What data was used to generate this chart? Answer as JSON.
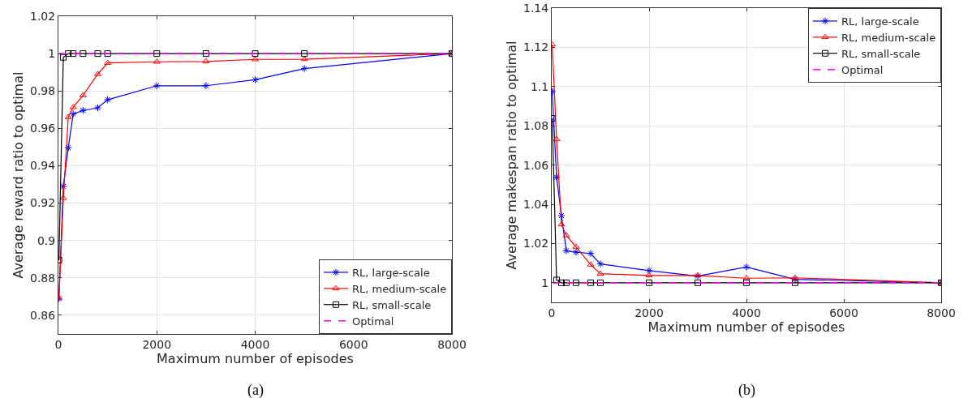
{
  "chart_data": [
    {
      "type": "line",
      "xlabel": "Maximum number of episodes",
      "ylabel": "Average reward ratio to optimal",
      "x": [
        10,
        100,
        200,
        300,
        500,
        800,
        1000,
        2000,
        3000,
        4000,
        5000,
        8000
      ],
      "series": [
        {
          "name": "RL, large-scale",
          "color": "#0000ff",
          "marker": "cross",
          "line_style": "solid",
          "values": [
            0.869,
            0.929,
            0.9496,
            0.9677,
            0.9696,
            0.971,
            0.9753,
            0.9828,
            0.9828,
            0.986,
            0.992,
            1
          ]
        },
        {
          "name": "RL, medium-scale",
          "color": "#ff0000",
          "marker": "triangle",
          "line_style": "solid",
          "values": [
            0.869,
            0.9227,
            0.966,
            0.9713,
            0.9777,
            0.989,
            0.995,
            0.9956,
            0.9958,
            0.9969,
            0.997,
            1
          ]
        },
        {
          "name": "RL, small-scale",
          "color": "#000000",
          "marker": "square",
          "line_style": "solid",
          "values": [
            0.8895,
            0.998,
            1,
            1,
            1,
            1,
            1,
            1,
            1,
            1,
            1,
            1
          ]
        },
        {
          "name": "Optimal",
          "color": "#ff00ff",
          "marker": "none",
          "line_style": "dashed",
          "values": [
            1,
            1,
            1,
            1,
            1,
            1,
            1,
            1,
            1,
            1,
            1,
            1
          ]
        }
      ],
      "xlim": [
        0,
        8000
      ],
      "xticks": [
        0,
        2000,
        4000,
        6000,
        8000
      ],
      "ylim": [
        0.85,
        1.02
      ],
      "yticks": [
        0.86,
        0.88,
        0.9,
        0.92,
        0.94,
        0.96,
        0.98,
        1,
        1.02
      ],
      "grid": true,
      "legend": "bottom right",
      "annotations": [
        "(a)"
      ]
    },
    {
      "type": "line",
      "xlabel": "Maximum number of episodes",
      "ylabel": "Average makespan ratio to optimal",
      "x": [
        10,
        100,
        200,
        300,
        500,
        800,
        1000,
        2000,
        3000,
        4000,
        5000,
        8000
      ],
      "series": [
        {
          "name": "RL, large-scale",
          "color": "#0000ff",
          "marker": "cross",
          "line_style": "solid",
          "values": [
            1.0975,
            1.0538,
            1.0342,
            1.0163,
            1.0156,
            1.0149,
            1.0096,
            1.0062,
            1.0034,
            1.008,
            1.0017,
            1
          ]
        },
        {
          "name": "RL, medium-scale",
          "color": "#ff0000",
          "marker": "triangle",
          "line_style": "solid",
          "values": [
            1.1214,
            1.0731,
            1.0297,
            1.0241,
            1.0183,
            1.0092,
            1.0046,
            1.0037,
            1.0037,
            1.0023,
            1.0025,
            1
          ]
        },
        {
          "name": "RL, small-scale",
          "color": "#000000",
          "marker": "square",
          "line_style": "solid",
          "values": [
            1.0838,
            1.0014,
            1,
            1,
            1,
            1,
            1,
            1,
            1,
            1,
            1,
            1
          ]
        },
        {
          "name": "Optimal",
          "color": "#ff00ff",
          "marker": "none",
          "line_style": "dashed",
          "values": [
            1,
            1,
            1,
            1,
            1,
            1,
            1,
            1,
            1,
            1,
            1,
            1
          ]
        }
      ],
      "xlim": [
        0,
        8000
      ],
      "xticks": [
        0,
        2000,
        4000,
        6000,
        8000
      ],
      "ylim": [
        0.99,
        1.14
      ],
      "yticks": [
        1,
        1.02,
        1.04,
        1.06,
        1.08,
        1.1,
        1.12,
        1.14
      ],
      "grid": true,
      "legend": "top right",
      "annotations": [
        "(b)"
      ]
    }
  ]
}
